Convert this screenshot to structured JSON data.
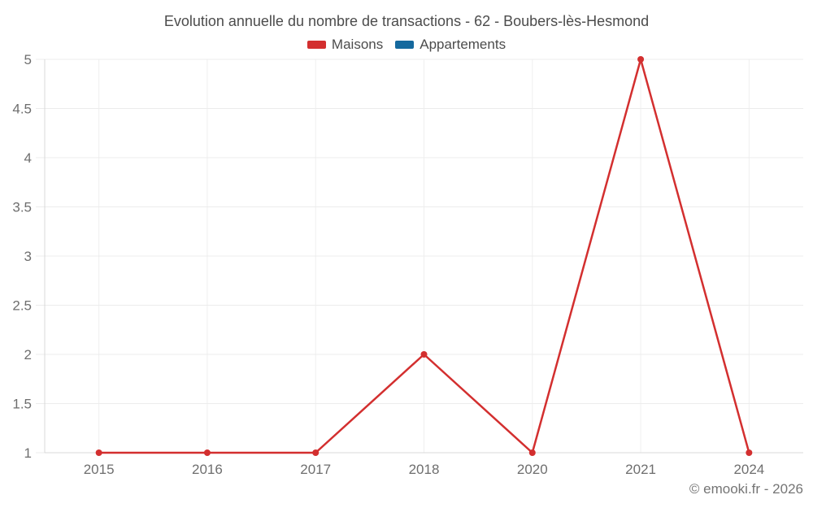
{
  "footer": {
    "credit": "© emooki.fr - 2026"
  },
  "chart_data": {
    "type": "line",
    "title": "Evolution annuelle du nombre de transactions - 62 - Boubers-lès-Hesmond",
    "categories": [
      "2015",
      "2016",
      "2017",
      "2018",
      "2020",
      "2021",
      "2024"
    ],
    "series": [
      {
        "name": "Maisons",
        "color": "#d32f2f",
        "values": [
          1,
          1,
          1,
          2,
          1,
          5,
          1
        ]
      },
      {
        "name": "Appartements",
        "color": "#15699e",
        "values": []
      }
    ],
    "xlabel": "",
    "ylabel": "",
    "ylim": [
      1,
      5
    ],
    "ytick_step": 0.5,
    "grid": true,
    "legend_position": "top",
    "text_colors": {
      "title": "#4c4c4c",
      "tick_labels": "#6e6e6e"
    }
  }
}
